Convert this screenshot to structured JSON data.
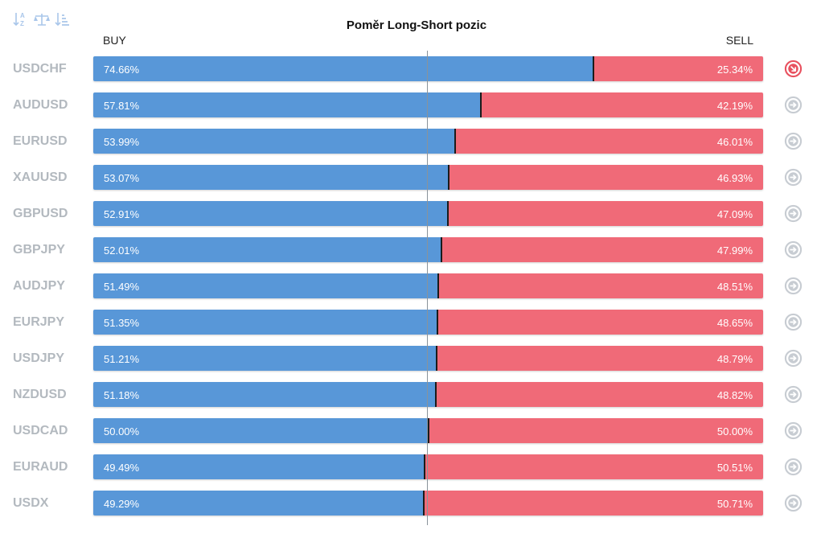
{
  "title": "Poměr Long-Short pozic",
  "buy_label": "BUY",
  "sell_label": "SELL",
  "toolbar": {
    "icons": [
      "sort-alpha-icon",
      "balance-scale-icon",
      "sort-amount-icon"
    ]
  },
  "colors": {
    "buy": "#5897d8",
    "sell": "#f06a78",
    "active_arrow": "#e8515f",
    "inactive_arrow": "#c7ccd2"
  },
  "chart_data": {
    "type": "bar",
    "title": "Poměr Long-Short pozic",
    "orientation": "horizontal-stacked-100",
    "categories": [
      "USDCHF",
      "AUDUSD",
      "EURUSD",
      "XAUUSD",
      "GBPUSD",
      "GBPJPY",
      "AUDJPY",
      "EURJPY",
      "USDJPY",
      "NZDUSD",
      "USDCAD",
      "EURAUD",
      "USDX"
    ],
    "series": [
      {
        "name": "BUY",
        "values": [
          74.66,
          57.81,
          53.99,
          53.07,
          52.91,
          52.01,
          51.49,
          51.35,
          51.21,
          51.18,
          50.0,
          49.49,
          49.29
        ]
      },
      {
        "name": "SELL",
        "values": [
          25.34,
          42.19,
          46.01,
          46.93,
          47.09,
          47.99,
          48.51,
          48.65,
          48.79,
          48.82,
          50.0,
          50.51,
          50.71
        ]
      }
    ],
    "buy_labels": [
      "74.66%",
      "57.81%",
      "53.99%",
      "53.07%",
      "52.91%",
      "52.01%",
      "51.49%",
      "51.35%",
      "51.21%",
      "51.18%",
      "50.00%",
      "49.49%",
      "49.29%"
    ],
    "sell_labels": [
      "25.34%",
      "42.19%",
      "46.01%",
      "46.93%",
      "47.09%",
      "47.99%",
      "48.51%",
      "48.65%",
      "48.79%",
      "48.82%",
      "50.00%",
      "50.51%",
      "50.71%"
    ],
    "reference_line": 50,
    "xlim": [
      0,
      100
    ],
    "row_icons": [
      "arrow-down-right-icon",
      "arrow-right-icon",
      "arrow-right-icon",
      "arrow-right-icon",
      "arrow-right-icon",
      "arrow-right-icon",
      "arrow-right-icon",
      "arrow-right-icon",
      "arrow-right-icon",
      "arrow-right-icon",
      "arrow-right-icon",
      "arrow-right-icon",
      "arrow-right-icon"
    ],
    "active_row": 0
  }
}
